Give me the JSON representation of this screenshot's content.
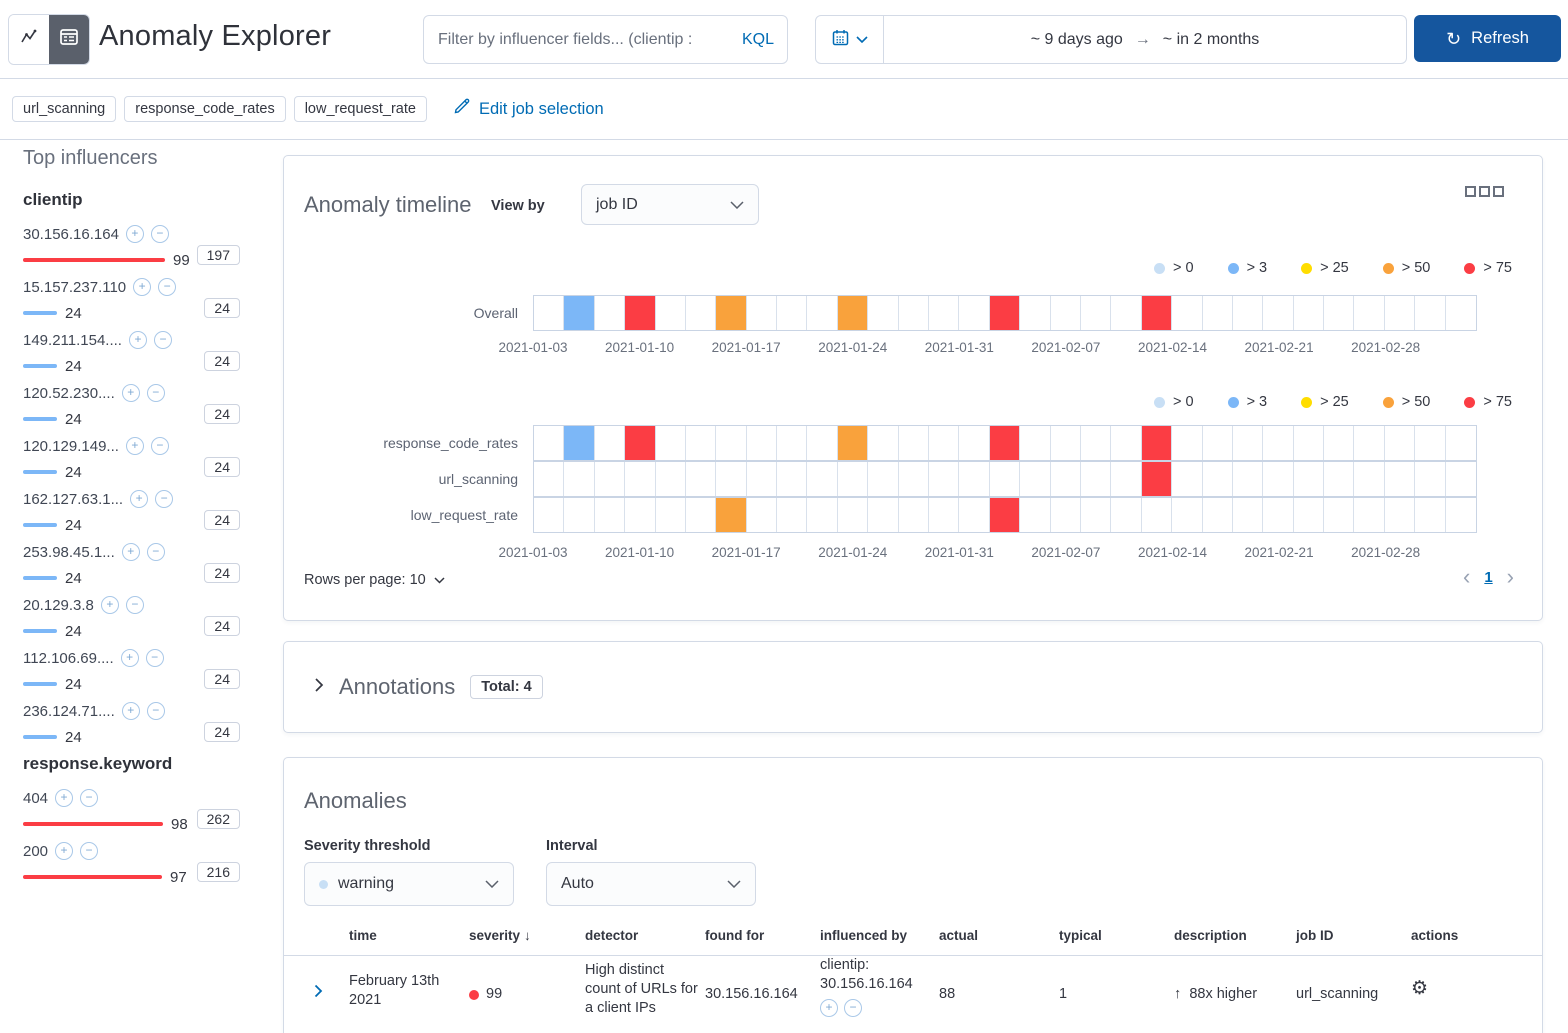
{
  "severity_colors": {
    "low": "#C8DFF5",
    "warning": "#7CB7F7",
    "minor": "#FFDD00",
    "major": "#F9A23C",
    "critical": "#FB3D44"
  },
  "header": {
    "title": "Anomaly Explorer",
    "filter": {
      "placeholder": "Filter by influencer fields... (clientip :",
      "kql_label": "KQL"
    },
    "time_range": {
      "from": "~ 9 days ago",
      "to": "~ in 2 months"
    },
    "refresh_label": "Refresh"
  },
  "jobs": {
    "badges": [
      "url_scanning",
      "response_code_rates",
      "low_request_rate"
    ],
    "edit_label": "Edit job selection"
  },
  "influencers": {
    "title": "Top influencers",
    "groups": [
      {
        "field": "clientip",
        "items": [
          {
            "name": "30.156.16.164",
            "value": 99,
            "count": "197",
            "severity": "critical"
          },
          {
            "name": "15.157.237.110",
            "value": 24,
            "count": "24",
            "severity": "warning"
          },
          {
            "name": "149.211.154....",
            "value": 24,
            "count": "24",
            "severity": "warning"
          },
          {
            "name": "120.52.230....",
            "value": 24,
            "count": "24",
            "severity": "warning"
          },
          {
            "name": "120.129.149...",
            "value": 24,
            "count": "24",
            "severity": "warning"
          },
          {
            "name": "162.127.63.1...",
            "value": 24,
            "count": "24",
            "severity": "warning"
          },
          {
            "name": "253.98.45.1...",
            "value": 24,
            "count": "24",
            "severity": "warning"
          },
          {
            "name": "20.129.3.8",
            "value": 24,
            "count": "24",
            "severity": "warning"
          },
          {
            "name": "112.106.69....",
            "value": 24,
            "count": "24",
            "severity": "warning"
          },
          {
            "name": "236.124.71....",
            "value": 24,
            "count": "24",
            "severity": "warning"
          }
        ]
      },
      {
        "field": "response.keyword",
        "items": [
          {
            "name": "404",
            "value": 98,
            "count": "262",
            "severity": "critical"
          },
          {
            "name": "200",
            "value": 97,
            "count": "216",
            "severity": "critical"
          }
        ]
      }
    ]
  },
  "timeline": {
    "title": "Anomaly timeline",
    "view_by_label": "View by",
    "view_by_value": "job ID",
    "menu_icon": "boxes-icon",
    "num_cells": 31,
    "legend": [
      {
        "label": "> 0",
        "severity": "low"
      },
      {
        "label": "> 3",
        "severity": "warning"
      },
      {
        "label": "> 25",
        "severity": "minor"
      },
      {
        "label": "> 50",
        "severity": "major"
      },
      {
        "label": "> 75",
        "severity": "critical"
      }
    ],
    "axis_labels": [
      "2021-01-03",
      "2021-01-10",
      "2021-01-17",
      "2021-01-24",
      "2021-01-31",
      "2021-02-07",
      "2021-02-14",
      "2021-02-21",
      "2021-02-28"
    ],
    "overall_lane": {
      "label": "Overall",
      "cells": [
        {
          "i": 1,
          "s": "warning"
        },
        {
          "i": 3,
          "s": "critical"
        },
        {
          "i": 6,
          "s": "major"
        },
        {
          "i": 10,
          "s": "major"
        },
        {
          "i": 15,
          "s": "critical"
        },
        {
          "i": 20,
          "s": "critical"
        }
      ]
    },
    "job_lanes": [
      {
        "label": "response_code_rates",
        "cells": [
          {
            "i": 1,
            "s": "warning"
          },
          {
            "i": 3,
            "s": "critical"
          },
          {
            "i": 10,
            "s": "major"
          },
          {
            "i": 15,
            "s": "critical"
          },
          {
            "i": 20,
            "s": "critical"
          }
        ]
      },
      {
        "label": "url_scanning",
        "cells": [
          {
            "i": 20,
            "s": "critical"
          }
        ]
      },
      {
        "label": "low_request_rate",
        "cells": [
          {
            "i": 6,
            "s": "major"
          },
          {
            "i": 15,
            "s": "critical"
          }
        ]
      }
    ],
    "rows_per_page_label": "Rows per page: 10",
    "page": "1"
  },
  "annotations": {
    "title": "Annotations",
    "total_badge": "Total: 4"
  },
  "anomalies": {
    "title": "Anomalies",
    "severity_label": "Severity threshold",
    "severity_value": "warning",
    "interval_label": "Interval",
    "interval_value": "Auto",
    "table": {
      "columns": {
        "time": "time",
        "severity": "severity",
        "detector": "detector",
        "found_for": "found for",
        "influenced_by": "influenced by",
        "actual": "actual",
        "typical": "typical",
        "description": "description",
        "job_id": "job ID",
        "actions": "actions"
      },
      "row": {
        "time": "February 13th 2021",
        "severity": "99",
        "detector": "High distinct count of URLs for a client IPs",
        "found_for": "30.156.16.164",
        "influenced_by": "clientip: 30.156.16.164",
        "actual": "88",
        "typical": "1",
        "description": "88x higher",
        "job_id": "url_scanning"
      }
    }
  }
}
